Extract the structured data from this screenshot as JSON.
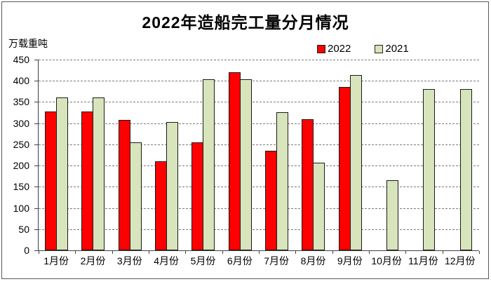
{
  "frame": {
    "border_color": "#595959",
    "background": "#ffffff"
  },
  "chart_data": {
    "type": "bar",
    "title": "2022年造船完工量分月情况",
    "unit_label": "万载重吨",
    "xlabel": "",
    "ylabel": "万载重吨",
    "categories": [
      "1月份",
      "2月份",
      "3月份",
      "4月份",
      "5月份",
      "6月份",
      "7月份",
      "8月份",
      "9月份",
      "10月份",
      "11月份",
      "12月份"
    ],
    "series": [
      {
        "name": "2022",
        "color": "#ff0000",
        "values": [
          327,
          327,
          308,
          210,
          255,
          421,
          235,
          309,
          385,
          null,
          null,
          null
        ]
      },
      {
        "name": "2021",
        "color": "#d8e4bc",
        "values": [
          361,
          361,
          254,
          302,
          404,
          404,
          326,
          207,
          413,
          166,
          380,
          380
        ]
      }
    ],
    "ylim": [
      0,
      450
    ],
    "ytick_step": 50,
    "yticks": [
      0,
      50,
      100,
      150,
      200,
      250,
      300,
      350,
      400,
      450
    ],
    "grid": "horizontal-dashed",
    "gridline_color": "#7a7a7a",
    "axis_color": "#404040",
    "bar_border_color": "#1a1a1a",
    "legend_position": "top-right"
  }
}
